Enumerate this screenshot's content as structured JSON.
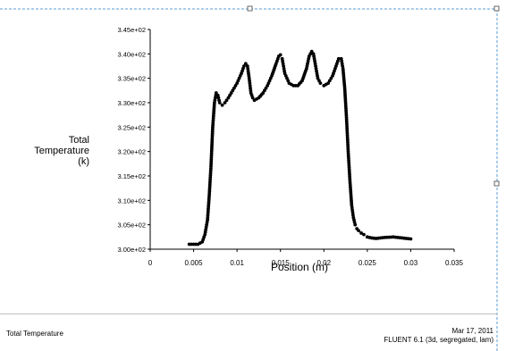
{
  "chart_data": {
    "type": "scatter",
    "title": "",
    "xlabel": "Position (m)",
    "ylabel_lines": [
      "Total",
      "Temperature",
      "(k)"
    ],
    "xlim": [
      0,
      0.035
    ],
    "ylim": [
      300,
      345
    ],
    "x_ticks": [
      0,
      0.005,
      0.01,
      0.015,
      0.02,
      0.025,
      0.03,
      0.035
    ],
    "x_tick_labels": [
      "0",
      "0.005",
      "0.01",
      "0.015",
      "0.02",
      "0.025",
      "0.03",
      "0.035"
    ],
    "y_ticks": [
      300,
      305,
      310,
      315,
      320,
      325,
      330,
      335,
      340,
      345
    ],
    "y_tick_labels": [
      "3.00e+02",
      "3.05e+02",
      "3.10e+02",
      "3.15e+02",
      "3.20e+02",
      "3.25e+02",
      "3.30e+02",
      "3.35e+02",
      "3.40e+02",
      "3.45e+02"
    ],
    "series": [
      {
        "x": [
          0.0045,
          0.005,
          0.0055,
          0.006,
          0.0063,
          0.0066,
          0.0068,
          0.007,
          0.0072,
          0.0074,
          0.0076,
          0.0078,
          0.008,
          0.0083,
          0.0086,
          0.009,
          0.0095,
          0.01,
          0.0105,
          0.0108,
          0.011,
          0.0112,
          0.0114,
          0.0116,
          0.0118,
          0.012,
          0.0125,
          0.013,
          0.0135,
          0.014,
          0.0145,
          0.0148,
          0.015,
          0.0152,
          0.0155,
          0.016,
          0.0165,
          0.017,
          0.0175,
          0.018,
          0.0183,
          0.0186,
          0.0188,
          0.019,
          0.0193,
          0.0196,
          0.02,
          0.0205,
          0.021,
          0.0214,
          0.0217,
          0.022,
          0.0222,
          0.0224,
          0.0226,
          0.0228,
          0.023,
          0.0232,
          0.0234,
          0.0236,
          0.0238,
          0.024,
          0.0243,
          0.0246,
          0.025,
          0.0255,
          0.026,
          0.027,
          0.028,
          0.029,
          0.03
        ],
        "y": [
          301,
          301,
          301,
          301.5,
          303,
          306,
          311,
          317,
          325,
          330,
          332,
          331.5,
          330,
          329.5,
          330,
          331,
          332.5,
          334,
          336,
          337.5,
          338,
          337.5,
          335,
          332,
          331,
          330.5,
          331,
          332,
          333.5,
          335.5,
          338,
          339.5,
          339.8,
          339,
          336,
          334,
          333.5,
          333.5,
          334.5,
          337,
          339.5,
          340.5,
          340,
          338,
          335,
          334,
          333.5,
          334,
          335.5,
          337.5,
          339,
          339,
          337,
          333,
          327,
          320,
          314,
          309,
          306.5,
          305,
          304.2,
          303.8,
          303.3,
          303,
          302.5,
          302.3,
          302.2,
          302.4,
          302.5,
          302.3,
          302.1
        ]
      }
    ]
  },
  "footer": {
    "left": "Total Temperature",
    "right_date": "Mar 17, 2011",
    "right_app": "FLUENT 6.1 (3d, segregated, lam)"
  }
}
